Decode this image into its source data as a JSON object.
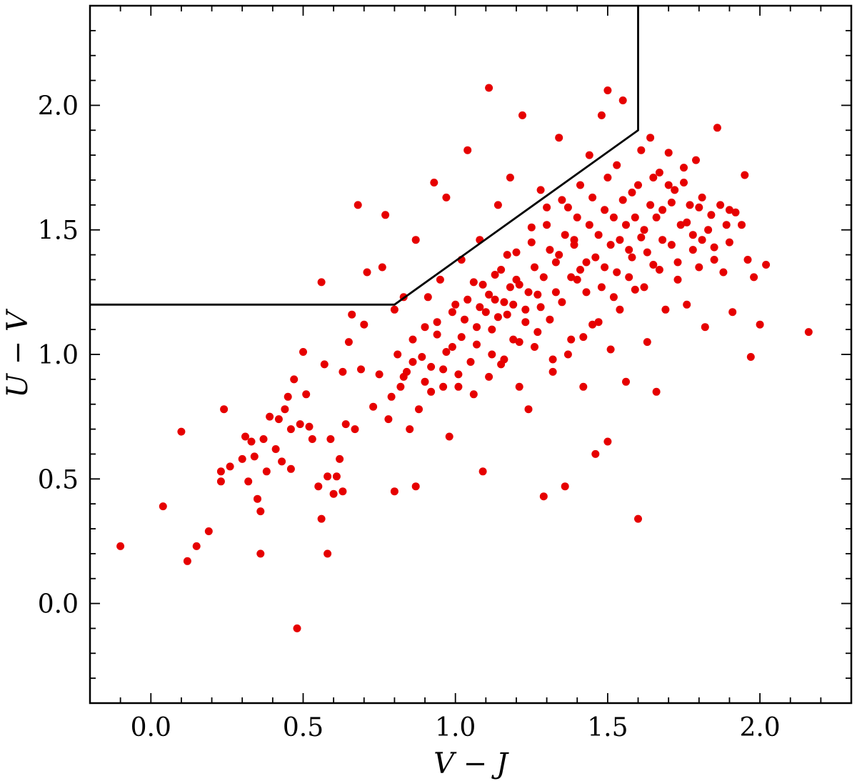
{
  "chart_data": {
    "type": "scatter",
    "title": "",
    "xlabel": "V − J",
    "ylabel": "U − V",
    "xlim": [
      -0.2,
      2.3
    ],
    "ylim": [
      -0.4,
      2.4
    ],
    "x_ticks": [
      0.0,
      0.5,
      1.0,
      1.5,
      2.0
    ],
    "x_tick_labels": [
      "0.0",
      "0.5",
      "1.0",
      "1.5",
      "2.0"
    ],
    "y_ticks": [
      0.0,
      0.5,
      1.0,
      1.5,
      2.0
    ],
    "y_tick_labels": [
      "0.0",
      "0.5",
      "1.0",
      "1.5",
      "2.0"
    ],
    "grid": false,
    "marker_color": "#e60000",
    "boundary_line": [
      [
        -0.2,
        1.2
      ],
      [
        0.8,
        1.2
      ],
      [
        1.6,
        1.9
      ],
      [
        1.6,
        2.4
      ]
    ],
    "series": [
      {
        "values": [
          [
            -0.1,
            0.23
          ],
          [
            0.04,
            0.39
          ],
          [
            0.1,
            0.69
          ],
          [
            0.12,
            0.17
          ],
          [
            0.15,
            0.23
          ],
          [
            0.19,
            0.29
          ],
          [
            0.23,
            0.49
          ],
          [
            0.23,
            0.53
          ],
          [
            0.24,
            0.78
          ],
          [
            0.26,
            0.55
          ],
          [
            0.3,
            0.58
          ],
          [
            0.31,
            0.67
          ],
          [
            0.32,
            0.49
          ],
          [
            0.33,
            0.65
          ],
          [
            0.34,
            0.59
          ],
          [
            0.35,
            0.42
          ],
          [
            0.36,
            0.37
          ],
          [
            0.36,
            0.2
          ],
          [
            0.37,
            0.66
          ],
          [
            0.38,
            0.53
          ],
          [
            0.39,
            0.75
          ],
          [
            0.41,
            0.62
          ],
          [
            0.42,
            0.74
          ],
          [
            0.43,
            0.57
          ],
          [
            0.44,
            0.78
          ],
          [
            0.45,
            0.83
          ],
          [
            0.46,
            0.54
          ],
          [
            0.46,
            0.7
          ],
          [
            0.47,
            0.9
          ],
          [
            0.48,
            -0.1
          ],
          [
            0.49,
            0.72
          ],
          [
            0.5,
            1.01
          ],
          [
            0.51,
            0.84
          ],
          [
            0.52,
            0.71
          ],
          [
            0.53,
            0.66
          ],
          [
            0.55,
            0.47
          ],
          [
            0.56,
            1.29
          ],
          [
            0.56,
            0.34
          ],
          [
            0.57,
            0.96
          ],
          [
            0.58,
            0.2
          ],
          [
            0.58,
            0.51
          ],
          [
            0.59,
            0.66
          ],
          [
            0.6,
            0.44
          ],
          [
            0.61,
            0.51
          ],
          [
            0.62,
            0.58
          ],
          [
            0.63,
            0.45
          ],
          [
            0.63,
            0.93
          ],
          [
            0.64,
            0.72
          ],
          [
            0.65,
            1.05
          ],
          [
            0.66,
            1.16
          ],
          [
            0.67,
            0.7
          ],
          [
            0.68,
            1.6
          ],
          [
            0.69,
            0.94
          ],
          [
            0.7,
            1.12
          ],
          [
            0.71,
            1.33
          ],
          [
            0.73,
            0.79
          ],
          [
            0.75,
            0.92
          ],
          [
            0.76,
            1.35
          ],
          [
            0.77,
            1.56
          ],
          [
            0.78,
            0.74
          ],
          [
            0.79,
            0.83
          ],
          [
            0.8,
            0.45
          ],
          [
            0.8,
            1.18
          ],
          [
            0.81,
            1.0
          ],
          [
            0.82,
            0.87
          ],
          [
            0.83,
            1.23
          ],
          [
            0.84,
            0.93
          ],
          [
            0.85,
            0.7
          ],
          [
            0.86,
            1.06
          ],
          [
            0.87,
            0.47
          ],
          [
            0.87,
            1.46
          ],
          [
            0.88,
            0.78
          ],
          [
            0.89,
            0.99
          ],
          [
            0.9,
            1.11
          ],
          [
            0.91,
            1.23
          ],
          [
            0.92,
            0.85
          ],
          [
            0.93,
            1.69
          ],
          [
            0.94,
            1.08
          ],
          [
            0.95,
            1.3
          ],
          [
            0.96,
            0.94
          ],
          [
            0.97,
            1.63
          ],
          [
            0.98,
            0.67
          ],
          [
            0.99,
            1.03
          ],
          [
            1.0,
            1.2
          ],
          [
            1.01,
            0.87
          ],
          [
            1.02,
            1.38
          ],
          [
            1.03,
            1.14
          ],
          [
            1.04,
            1.82
          ],
          [
            1.05,
            0.97
          ],
          [
            1.06,
            1.29
          ],
          [
            1.07,
            1.04
          ],
          [
            1.08,
            1.46
          ],
          [
            1.09,
            0.53
          ],
          [
            1.1,
            1.17
          ],
          [
            1.11,
            2.07
          ],
          [
            1.12,
            1.0
          ],
          [
            1.13,
            1.32
          ],
          [
            1.14,
            1.6
          ],
          [
            1.15,
            0.96
          ],
          [
            1.16,
            1.21
          ],
          [
            1.17,
            1.4
          ],
          [
            1.18,
            1.71
          ],
          [
            1.19,
            1.06
          ],
          [
            1.2,
            1.3
          ],
          [
            1.21,
            0.87
          ],
          [
            1.22,
            1.96
          ],
          [
            1.23,
            1.18
          ],
          [
            1.24,
            0.78
          ],
          [
            1.25,
            1.45
          ],
          [
            1.26,
            1.03
          ],
          [
            1.27,
            1.24
          ],
          [
            1.28,
            1.66
          ],
          [
            1.29,
            0.43
          ],
          [
            1.3,
            1.52
          ],
          [
            1.31,
            1.14
          ],
          [
            1.32,
            0.98
          ],
          [
            1.33,
            1.37
          ],
          [
            1.34,
            1.87
          ],
          [
            1.35,
            1.21
          ],
          [
            1.36,
            0.47
          ],
          [
            1.37,
            1.59
          ],
          [
            1.38,
            1.06
          ],
          [
            1.39,
            1.44
          ],
          [
            1.4,
            1.3
          ],
          [
            1.41,
            1.68
          ],
          [
            1.42,
            0.87
          ],
          [
            1.43,
            1.25
          ],
          [
            1.44,
            1.8
          ],
          [
            1.45,
            1.12
          ],
          [
            1.46,
            0.6
          ],
          [
            1.47,
            1.48
          ],
          [
            1.48,
            1.96
          ],
          [
            1.49,
            1.35
          ],
          [
            1.5,
            0.65
          ],
          [
            1.5,
            2.06
          ],
          [
            1.51,
            1.02
          ],
          [
            1.52,
            1.55
          ],
          [
            1.53,
            1.76
          ],
          [
            1.54,
            1.18
          ],
          [
            1.55,
            2.02
          ],
          [
            1.56,
            0.89
          ],
          [
            1.57,
            1.42
          ],
          [
            1.58,
            1.65
          ],
          [
            1.59,
            1.26
          ],
          [
            1.6,
            0.34
          ],
          [
            1.61,
            1.82
          ],
          [
            1.62,
            1.5
          ],
          [
            1.63,
            1.05
          ],
          [
            1.64,
            1.87
          ],
          [
            1.65,
            1.36
          ],
          [
            1.66,
            0.85
          ],
          [
            1.67,
            1.73
          ],
          [
            1.68,
            1.58
          ],
          [
            1.69,
            1.18
          ],
          [
            1.7,
            1.81
          ],
          [
            1.71,
            1.44
          ],
          [
            1.72,
            1.66
          ],
          [
            1.73,
            1.3
          ],
          [
            1.74,
            1.52
          ],
          [
            1.75,
            1.75
          ],
          [
            1.76,
            1.2
          ],
          [
            1.77,
            1.6
          ],
          [
            1.78,
            1.48
          ],
          [
            1.79,
            1.78
          ],
          [
            1.8,
            1.35
          ],
          [
            1.81,
            1.63
          ],
          [
            1.82,
            1.11
          ],
          [
            1.83,
            1.5
          ],
          [
            1.84,
            1.56
          ],
          [
            1.85,
            1.43
          ],
          [
            1.86,
            1.91
          ],
          [
            1.87,
            1.6
          ],
          [
            1.88,
            1.33
          ],
          [
            1.89,
            1.52
          ],
          [
            1.9,
            1.45
          ],
          [
            1.91,
            1.17
          ],
          [
            1.92,
            1.57
          ],
          [
            1.94,
            1.52
          ],
          [
            1.95,
            1.72
          ],
          [
            1.96,
            1.38
          ],
          [
            1.97,
            0.99
          ],
          [
            1.98,
            1.31
          ],
          [
            2.0,
            1.12
          ],
          [
            2.02,
            1.36
          ],
          [
            2.16,
            1.09
          ],
          [
            1.08,
            1.19
          ],
          [
            1.12,
            1.1
          ],
          [
            1.17,
            1.16
          ],
          [
            1.21,
            1.28
          ],
          [
            1.26,
            1.35
          ],
          [
            1.31,
            1.42
          ],
          [
            1.36,
            1.48
          ],
          [
            1.41,
            1.34
          ],
          [
            1.46,
            1.39
          ],
          [
            1.51,
            1.44
          ],
          [
            1.56,
            1.52
          ],
          [
            1.61,
            1.47
          ],
          [
            1.66,
            1.55
          ],
          [
            1.71,
            1.61
          ],
          [
            1.76,
            1.53
          ],
          [
            1.81,
            1.46
          ],
          [
            1.13,
            1.22
          ],
          [
            1.18,
            1.27
          ],
          [
            1.23,
            1.13
          ],
          [
            1.28,
            1.19
          ],
          [
            1.33,
            1.25
          ],
          [
            1.38,
            1.31
          ],
          [
            1.43,
            1.37
          ],
          [
            1.48,
            1.27
          ],
          [
            1.53,
            1.33
          ],
          [
            1.58,
            1.39
          ],
          [
            1.63,
            1.41
          ],
          [
            1.68,
            1.46
          ],
          [
            1.73,
            1.37
          ],
          [
            1.78,
            1.42
          ],
          [
            0.97,
            1.01
          ],
          [
            1.02,
            1.07
          ],
          [
            1.07,
            1.11
          ],
          [
            1.11,
            0.91
          ],
          [
            1.16,
            0.98
          ],
          [
            1.21,
            1.05
          ],
          [
            1.27,
            1.09
          ],
          [
            1.32,
            0.93
          ],
          [
            1.37,
            1.0
          ],
          [
            1.42,
            1.07
          ],
          [
            1.47,
            1.13
          ],
          [
            1.52,
            1.23
          ],
          [
            1.57,
            1.31
          ],
          [
            1.62,
            1.27
          ],
          [
            1.67,
            1.34
          ],
          [
            0.92,
            0.95
          ],
          [
            0.96,
            0.87
          ],
          [
            1.01,
            0.92
          ],
          [
            1.06,
            0.84
          ],
          [
            1.11,
            1.24
          ],
          [
            1.15,
            1.34
          ],
          [
            1.2,
            1.41
          ],
          [
            1.25,
            1.51
          ],
          [
            1.3,
            1.59
          ],
          [
            1.35,
            1.62
          ],
          [
            1.4,
            1.55
          ],
          [
            1.45,
            1.63
          ],
          [
            1.5,
            1.71
          ],
          [
            1.55,
            1.62
          ],
          [
            1.6,
            1.68
          ],
          [
            1.65,
            1.71
          ],
          [
            1.7,
            1.68
          ],
          [
            1.75,
            1.69
          ],
          [
            1.8,
            1.59
          ],
          [
            1.85,
            1.38
          ],
          [
            1.9,
            1.58
          ],
          [
            0.83,
            0.91
          ],
          [
            0.86,
            0.97
          ],
          [
            0.9,
            0.89
          ],
          [
            0.94,
            1.13
          ],
          [
            0.99,
            1.17
          ],
          [
            1.04,
            1.22
          ],
          [
            1.09,
            1.28
          ],
          [
            1.14,
            1.15
          ],
          [
            1.19,
            1.2
          ],
          [
            1.24,
            1.25
          ],
          [
            1.29,
            1.31
          ],
          [
            1.34,
            1.4
          ],
          [
            1.39,
            1.46
          ],
          [
            1.44,
            1.52
          ],
          [
            1.49,
            1.58
          ],
          [
            1.54,
            1.46
          ],
          [
            1.59,
            1.55
          ],
          [
            1.64,
            1.6
          ]
        ]
      }
    ]
  }
}
